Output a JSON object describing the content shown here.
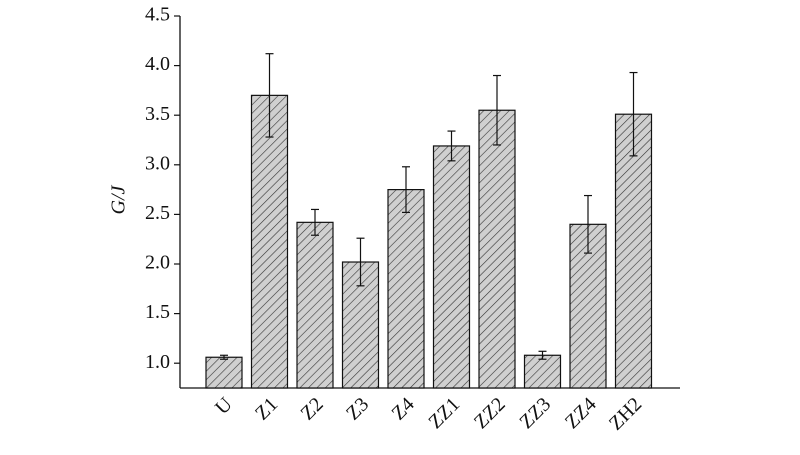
{
  "chart_data": {
    "type": "bar",
    "y_label": "G/J",
    "categories": [
      "U",
      "Z1",
      "Z2",
      "Z3",
      "Z4",
      "ZZ1",
      "ZZ2",
      "ZZ3",
      "ZZ4",
      "ZH2"
    ],
    "values": [
      1.06,
      3.7,
      2.42,
      2.02,
      2.75,
      3.19,
      3.55,
      1.08,
      2.4,
      3.51
    ],
    "errors": [
      0.02,
      0.42,
      0.13,
      0.24,
      0.23,
      0.15,
      0.35,
      0.04,
      0.29,
      0.42
    ],
    "color": "#d0d0d0",
    "ylim": [
      0.75,
      4.5
    ],
    "yticks": [
      {
        "value": 1.0,
        "label": "1.0"
      },
      {
        "value": 1.5,
        "label": "1.5"
      },
      {
        "value": 2.0,
        "label": "2.0"
      },
      {
        "value": 2.5,
        "label": "2.5"
      },
      {
        "value": 3.0,
        "label": "3.0"
      },
      {
        "value": 3.5,
        "label": "3.5"
      },
      {
        "value": 4.0,
        "label": "4.0"
      },
      {
        "value": 4.5,
        "label": "4.5"
      }
    ]
  }
}
